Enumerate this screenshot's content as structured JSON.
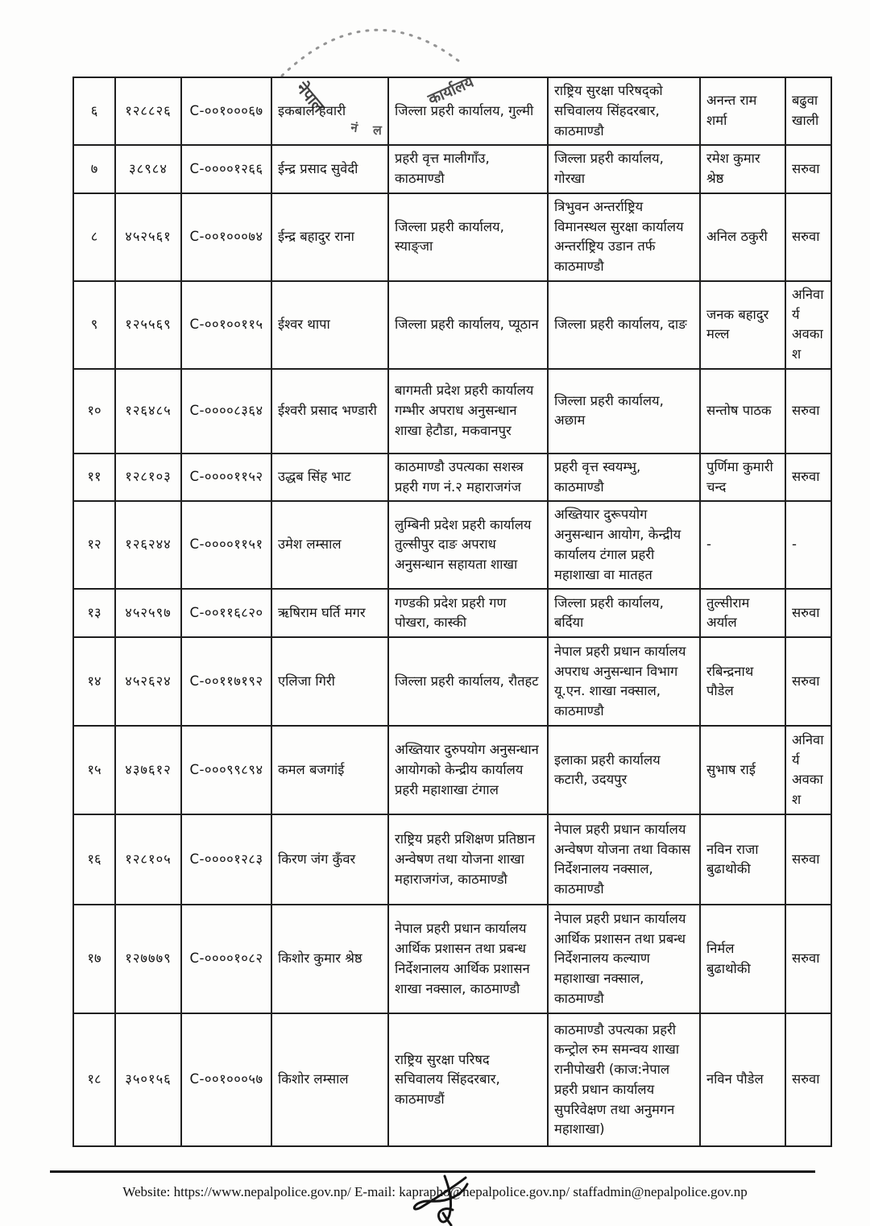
{
  "document": {
    "paper_color": "#fdfdfc",
    "ink_color": "#1a1a1a",
    "stamp": {
      "word_nepal": "नेपाल",
      "word_karyalaya": "कार्यालय",
      "fragment_nam": "नं",
      "fragment_la": "ल"
    },
    "footer_text": "Website: https://www.nepalpolice.gov.np/ E-mail: kaprapho@nepalpolice.gov.np/ staffadmin@nepalpolice.gov.np"
  },
  "table": {
    "rows": [
      {
        "sn": "६",
        "staff_no": "१२८८२६",
        "code": "C-००१०००६७",
        "name": "इकबाल हवारी",
        "from_office": "जिल्ला प्रहरी कार्यालय, गुल्मी",
        "to_office": "राष्ट्रिय सुरक्षा परिषद्को सचिवालय सिंहदरबार, काठमाण्डौ",
        "replacement": "अनन्त राम शर्मा",
        "remark": "बढुवा खाली"
      },
      {
        "sn": "७",
        "staff_no": "३८९८४",
        "code": "C-००००१२६६",
        "name": "ईन्द्र प्रसाद सुवेदी",
        "from_office": "प्रहरी वृत्त मालीगाँउ, काठमाण्डौ",
        "to_office": "जिल्ला प्रहरी कार्यालय, गोरखा",
        "replacement": "रमेश कुमार श्रेष्ठ",
        "remark": "सरुवा"
      },
      {
        "sn": "८",
        "staff_no": "४५२५६१",
        "code": "C-००१०००७४",
        "name": "ईन्द्र बहादुर राना",
        "from_office": "जिल्ला प्रहरी कार्यालय, स्याङ्जा",
        "to_office": "त्रिभुवन अन्तर्राष्ट्रिय विमानस्थल सुरक्षा कार्यालय  अन्तर्राष्ट्रिय उडान तर्फ काठमाण्डौ",
        "replacement": "अनिल ठकुरी",
        "remark": "सरुवा"
      },
      {
        "sn": "९",
        "staff_no": "१२५५६९",
        "code": "C-००१००११५",
        "name": "ईश्वर थापा",
        "from_office": "जिल्ला प्रहरी कार्यालय, प्यूठान",
        "to_office": "जिल्ला प्रहरी कार्यालय, दाङ",
        "replacement": "जनक बहादुर मल्ल",
        "remark": "अनिवार्य अवकाश"
      },
      {
        "sn": "१०",
        "staff_no": "१२६४८५",
        "code": "C-००००८३६४",
        "name": "ईश्वरी प्रसाद भण्डारी",
        "from_office": "बागमती प्रदेश प्रहरी कार्यालय गम्भीर अपराध अनुसन्धान शाखा हेटौडा, मकवानपुर",
        "to_office": "जिल्ला प्रहरी कार्यालय, अछाम",
        "replacement": "सन्तोष पाठक",
        "remark": "सरुवा"
      },
      {
        "sn": "११",
        "staff_no": "१२८१०३",
        "code": "C-००००११५२",
        "name": "उद्धब सिंह भाट",
        "from_office": "काठमाण्डौ उपत्यका सशस्त्र प्रहरी गण नं.२ महाराजगंज",
        "to_office": "प्रहरी वृत्त स्वयम्भु, काठमाण्डौ",
        "replacement": "पुर्णिमा कुमारी चन्द",
        "remark": "सरुवा"
      },
      {
        "sn": "१२",
        "staff_no": "१२६२४४",
        "code": "C-००००११५१",
        "name": "उमेश लम्साल",
        "from_office": "लुम्बिनी प्रदेश प्रहरी कार्यालय तुल्सीपुर दाङ अपराध अनुसन्धान सहायता शाखा",
        "to_office": "अख्तियार दुरूपयोग अनुसन्धान आयोग, केन्द्रीय कार्यालय टंगाल प्रहरी महाशाखा वा मातहत",
        "replacement": "-",
        "remark": "-"
      },
      {
        "sn": "१३",
        "staff_no": "४५२५९७",
        "code": "C-००११६८२०",
        "name": "ऋषिराम घर्ति मगर",
        "from_office": "गण्डकी प्रदेश प्रहरी गण पोखरा, कास्की",
        "to_office": "जिल्ला प्रहरी कार्यालय, बर्दिया",
        "replacement": "तुल्सीराम अर्याल",
        "remark": "सरुवा"
      },
      {
        "sn": "१४",
        "staff_no": "४५२६२४",
        "code": "C-००११७१९२",
        "name": "एलिजा गिरी",
        "from_office": "जिल्ला प्रहरी कार्यालय, रौतहट",
        "to_office": "नेपाल प्रहरी प्रधान कार्यालय अपराध अनुसन्धान विभाग यू.एन. शाखा नक्साल, काठमाण्डौ",
        "replacement": "रबिन्द्रनाथ पौडेल",
        "remark": "सरुवा"
      },
      {
        "sn": "१५",
        "staff_no": "४३७६१२",
        "code": "C-०००९९८९४",
        "name": "कमल बजगांई",
        "from_office": "अख्तियार दुरुपयोग अनुसन्धान आयोगको केन्द्रीय कार्यालय प्रहरी महाशाखा टंगाल",
        "to_office": "इलाका प्रहरी कार्यालय कटारी, उदयपुर",
        "replacement": "सुभाष राई",
        "remark": "अनिवार्य अवकाश"
      },
      {
        "sn": "१६",
        "staff_no": "१२८१०५",
        "code": "C-००००१२८३",
        "name": "किरण जंग कुँवर",
        "from_office": "राष्ट्रिय प्रहरी प्रशिक्षण प्रतिष्ठान अन्वेषण तथा योजना शाखा महाराजगंज, काठमाण्डौ",
        "to_office": "नेपाल प्रहरी प्रधान कार्यालय अन्वेषण योजना तथा विकास निर्देशनालय नक्साल, काठमाण्डौ",
        "replacement": "नविन राजा बुढाथोकी",
        "remark": "सरुवा"
      },
      {
        "sn": "१७",
        "staff_no": "१२७७७९",
        "code": "C-००००१०८२",
        "name": "किशोर कुमार श्रेष्ठ",
        "from_office": "नेपाल प्रहरी प्रधान कार्यालय आर्थिक प्रशासन तथा प्रबन्ध निर्देशनालय आर्थिक प्रशासन शाखा नक्साल, काठमाण्डौ",
        "to_office": "नेपाल प्रहरी प्रधान कार्यालय आर्थिक प्रशासन तथा प्रबन्ध निर्देशनालय कल्याण महाशाखा नक्साल, काठमाण्डौ",
        "replacement": "निर्मल बुढाथोकी",
        "remark": "सरुवा"
      },
      {
        "sn": "१८",
        "staff_no": "३५०१५६",
        "code": "C-००१०००५७",
        "name": "किशोर लम्साल",
        "from_office": "राष्ट्रिय सुरक्षा परिषद सचिवालय सिंहदरबार, काठमाण्डौं",
        "to_office": "काठमाण्डौ उपत्यका प्रहरी कन्ट्रोल रुम समन्वय शाखा रानीपोखरी (काज:नेपाल प्रहरी प्रधान कार्यालय सुपरिवेक्षण तथा अनुमगन महाशाखा)",
        "replacement": "नविन पौडेल",
        "remark": "सरुवा"
      }
    ]
  }
}
